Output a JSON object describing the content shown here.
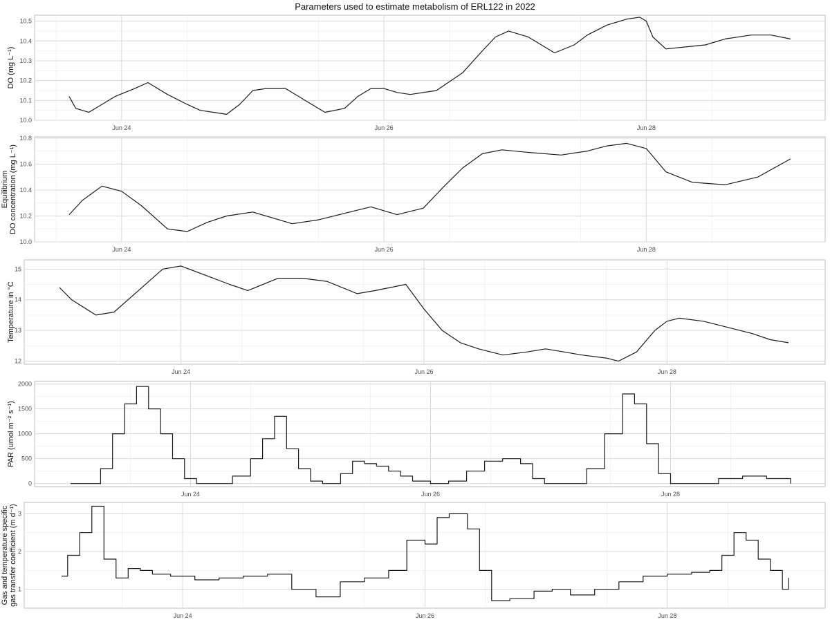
{
  "chart_data": {
    "type": "line",
    "title": "Parameters used to estimate metabolism of ERL122 in 2022",
    "x_ticks": [
      "Jun 24",
      "Jun 26",
      "Jun 28"
    ],
    "panels": [
      {
        "ylabel": [
          "DO (mg L⁻¹)"
        ],
        "yticks": [
          "10.0",
          "10.1",
          "10.2",
          "10.3",
          "10.4",
          "10.5"
        ],
        "ylim": [
          10.0,
          10.53
        ],
        "x_day_range": [
          23.6,
          29.1
        ],
        "x": [
          23.6,
          23.65,
          23.75,
          23.85,
          23.95,
          24.1,
          24.2,
          24.35,
          24.5,
          24.6,
          24.7,
          24.8,
          24.9,
          25.0,
          25.1,
          25.25,
          25.35,
          25.45,
          25.55,
          25.7,
          25.8,
          25.9,
          26.0,
          26.1,
          26.2,
          26.4,
          26.6,
          26.75,
          26.85,
          26.95,
          27.1,
          27.2,
          27.3,
          27.45,
          27.55,
          27.7,
          27.85,
          27.95,
          28.0,
          28.05,
          28.15,
          28.3,
          28.45,
          28.6,
          28.8,
          28.95,
          29.1
        ],
        "y": [
          10.12,
          10.06,
          10.04,
          10.08,
          10.12,
          10.16,
          10.19,
          10.13,
          10.08,
          10.05,
          10.04,
          10.03,
          10.08,
          10.15,
          10.16,
          10.16,
          10.12,
          10.08,
          10.04,
          10.06,
          10.12,
          10.16,
          10.16,
          10.14,
          10.13,
          10.15,
          10.24,
          10.35,
          10.42,
          10.45,
          10.42,
          10.38,
          10.34,
          10.38,
          10.43,
          10.48,
          10.51,
          10.52,
          10.5,
          10.42,
          10.36,
          10.37,
          10.38,
          10.41,
          10.43,
          10.43,
          10.41
        ]
      },
      {
        "ylabel": [
          "Equilibrium",
          "DO concentration (mg L⁻¹)"
        ],
        "yticks": [
          "10.0",
          "10.2",
          "10.4",
          "10.6",
          "10.8"
        ],
        "ylim": [
          10.0,
          10.81
        ],
        "x_day_range": [
          23.6,
          29.1
        ],
        "x": [
          23.6,
          23.7,
          23.85,
          24.0,
          24.15,
          24.35,
          24.5,
          24.65,
          24.8,
          25.0,
          25.3,
          25.5,
          25.7,
          25.9,
          26.1,
          26.3,
          26.45,
          26.6,
          26.75,
          26.9,
          27.1,
          27.35,
          27.55,
          27.7,
          27.85,
          28.0,
          28.15,
          28.35,
          28.6,
          28.85,
          29.1
        ],
        "y": [
          10.21,
          10.32,
          10.43,
          10.39,
          10.28,
          10.1,
          10.08,
          10.15,
          10.2,
          10.23,
          10.14,
          10.17,
          10.22,
          10.27,
          10.21,
          10.26,
          10.42,
          10.57,
          10.68,
          10.71,
          10.69,
          10.67,
          10.7,
          10.74,
          10.76,
          10.72,
          10.54,
          10.46,
          10.44,
          10.5,
          10.64
        ]
      },
      {
        "ylabel": [
          "Temperature in °C"
        ],
        "yticks": [
          "12",
          "13",
          "14",
          "15"
        ],
        "ylim": [
          11.9,
          15.3
        ],
        "x_day_range": [
          23.0,
          29.0
        ],
        "x": [
          23.0,
          23.1,
          23.3,
          23.45,
          23.65,
          23.85,
          24.0,
          24.2,
          24.4,
          24.55,
          24.8,
          25.0,
          25.2,
          25.45,
          25.6,
          25.85,
          26.0,
          26.15,
          26.3,
          26.45,
          26.65,
          26.85,
          27.0,
          27.15,
          27.3,
          27.5,
          27.6,
          27.75,
          27.9,
          28.0,
          28.1,
          28.3,
          28.5,
          28.7,
          28.85,
          29.0
        ],
        "y": [
          14.4,
          14.0,
          13.5,
          13.6,
          14.3,
          15.0,
          15.1,
          14.8,
          14.5,
          14.3,
          14.7,
          14.7,
          14.6,
          14.2,
          14.3,
          14.5,
          13.7,
          13.0,
          12.6,
          12.4,
          12.2,
          12.3,
          12.4,
          12.3,
          12.2,
          12.1,
          12.0,
          12.3,
          13.0,
          13.3,
          13.4,
          13.3,
          13.1,
          12.9,
          12.7,
          12.6
        ]
      },
      {
        "ylabel": [
          "PAR (umol m⁻² s⁻¹)"
        ],
        "yticks": [
          "0",
          "500",
          "1000",
          "1500",
          "2000"
        ],
        "ylim": [
          -60,
          2050
        ],
        "x_day_range": [
          23.0,
          29.0
        ],
        "x": [
          23.0,
          23.15,
          23.25,
          23.35,
          23.45,
          23.55,
          23.65,
          23.75,
          23.85,
          23.95,
          24.05,
          24.15,
          24.35,
          24.5,
          24.6,
          24.7,
          24.8,
          24.9,
          25.0,
          25.1,
          25.25,
          25.35,
          25.45,
          25.55,
          25.65,
          25.75,
          25.85,
          26.0,
          26.15,
          26.3,
          26.45,
          26.6,
          26.75,
          26.85,
          26.95,
          27.1,
          27.3,
          27.45,
          27.6,
          27.7,
          27.8,
          27.9,
          28.0,
          28.2,
          28.4,
          28.6,
          28.8,
          29.0
        ],
        "y": [
          0,
          0,
          300,
          1000,
          1600,
          1950,
          1500,
          1000,
          500,
          100,
          0,
          0,
          150,
          500,
          900,
          1350,
          700,
          300,
          50,
          0,
          200,
          450,
          400,
          350,
          250,
          150,
          50,
          0,
          50,
          250,
          450,
          500,
          400,
          100,
          0,
          0,
          300,
          1000,
          1800,
          1600,
          800,
          200,
          0,
          0,
          100,
          150,
          100,
          0
        ]
      },
      {
        "ylabel": [
          "Gas and temperature specific",
          "gas transfer coefficient (m d⁻¹)"
        ],
        "yticks": [
          "1",
          "2",
          "3"
        ],
        "ylim": [
          0.5,
          3.3
        ],
        "x_day_range": [
          23.0,
          29.0
        ],
        "x": [
          23.0,
          23.05,
          23.15,
          23.25,
          23.35,
          23.45,
          23.55,
          23.65,
          23.75,
          23.9,
          24.1,
          24.3,
          24.5,
          24.7,
          24.9,
          25.1,
          25.3,
          25.5,
          25.7,
          25.85,
          26.0,
          26.1,
          26.2,
          26.35,
          26.45,
          26.55,
          26.7,
          26.9,
          27.05,
          27.2,
          27.4,
          27.6,
          27.8,
          28.0,
          28.2,
          28.35,
          28.45,
          28.55,
          28.65,
          28.75,
          28.85,
          28.95,
          29.0
        ],
        "y": [
          1.35,
          1.9,
          2.5,
          3.2,
          1.8,
          1.3,
          1.55,
          1.5,
          1.4,
          1.35,
          1.25,
          1.3,
          1.35,
          1.4,
          1.0,
          0.8,
          1.2,
          1.3,
          1.5,
          2.3,
          2.2,
          2.9,
          3.0,
          2.6,
          1.5,
          0.7,
          0.75,
          0.95,
          1.0,
          0.85,
          1.0,
          1.2,
          1.35,
          1.4,
          1.45,
          1.5,
          1.9,
          2.5,
          2.3,
          1.8,
          1.5,
          1.0,
          1.3
        ]
      }
    ]
  }
}
